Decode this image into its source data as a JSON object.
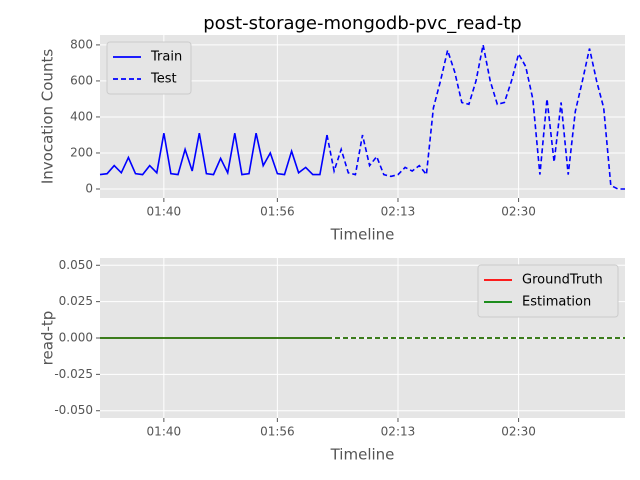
{
  "chart_data": [
    {
      "type": "line",
      "title": "post-storage-mongodb-pvc_read-tp",
      "xlabel": "Timeline",
      "ylabel": "Invocation Counts",
      "x": [
        "01:31",
        "01:32",
        "01:33",
        "01:34",
        "01:35",
        "01:36",
        "01:37",
        "01:38",
        "01:39",
        "01:40",
        "01:41",
        "01:42",
        "01:43",
        "01:44",
        "01:45",
        "01:46",
        "01:47",
        "01:48",
        "01:49",
        "01:50",
        "01:51",
        "01:52",
        "01:53",
        "01:54",
        "01:55",
        "01:56",
        "01:57",
        "01:58",
        "01:59",
        "02:00",
        "02:01",
        "02:02",
        "02:03",
        "02:04",
        "02:05",
        "02:06",
        "02:07",
        "02:08",
        "02:09",
        "02:10",
        "02:11",
        "02:12",
        "02:13",
        "02:14",
        "02:15",
        "02:16",
        "02:17",
        "02:18",
        "02:19",
        "02:20",
        "02:21",
        "02:22",
        "02:23",
        "02:24",
        "02:25",
        "02:26",
        "02:27",
        "02:28",
        "02:29",
        "02:30",
        "02:31",
        "02:32",
        "02:33",
        "02:34",
        "02:35",
        "02:36",
        "02:37",
        "02:38",
        "02:39",
        "02:40",
        "02:41",
        "02:42",
        "02:43",
        "02:44",
        "02:45"
      ],
      "series": [
        {
          "name": "Train",
          "color": "#0000ff",
          "linestyle": "solid",
          "values": [
            80,
            85,
            130,
            90,
            175,
            85,
            80,
            130,
            90,
            310,
            85,
            80,
            220,
            100,
            310,
            85,
            80,
            170,
            90,
            310,
            80,
            85,
            310,
            130,
            200,
            85,
            80,
            210,
            90,
            120,
            80,
            80,
            300,
            null,
            null,
            null,
            null,
            null,
            null,
            null,
            null,
            null,
            null,
            null,
            null,
            null,
            null,
            null,
            null,
            null,
            null,
            null,
            null,
            null,
            null,
            null,
            null,
            null,
            null,
            null,
            null,
            null,
            null,
            null,
            null,
            null,
            null,
            null,
            null,
            null,
            null,
            null,
            null,
            null,
            null
          ]
        },
        {
          "name": "Test",
          "color": "#0000ff",
          "linestyle": "dashed",
          "values": [
            null,
            null,
            null,
            null,
            null,
            null,
            null,
            null,
            null,
            null,
            null,
            null,
            null,
            null,
            null,
            null,
            null,
            null,
            null,
            null,
            null,
            null,
            null,
            null,
            null,
            null,
            null,
            null,
            null,
            null,
            null,
            null,
            300,
            100,
            220,
            90,
            80,
            300,
            130,
            180,
            80,
            70,
            80,
            120,
            100,
            130,
            80,
            450,
            600,
            770,
            650,
            480,
            470,
            600,
            800,
            600,
            470,
            480,
            600,
            750,
            680,
            500,
            80,
            500,
            150,
            480,
            80,
            430,
            600,
            780,
            600,
            450,
            20,
            0,
            0
          ]
        }
      ],
      "xlim": [
        "01:31",
        "02:45"
      ],
      "xticks": [
        "01:40",
        "01:56",
        "02:13",
        "02:30"
      ],
      "ylim": [
        -50,
        855
      ],
      "yticks": [
        0,
        200,
        400,
        600,
        800
      ],
      "grid": true,
      "legend": "upper left"
    },
    {
      "type": "line",
      "xlabel": "Timeline",
      "ylabel": "read-tp",
      "series": [
        {
          "name": "GroundTruth",
          "color": "#ff0000",
          "values": [
            0,
            0,
            0,
            0,
            0,
            0,
            0,
            0,
            0,
            0,
            0,
            0,
            0,
            0,
            0,
            0,
            0,
            0,
            0,
            0,
            0,
            0,
            0,
            0,
            0,
            0,
            0,
            0,
            0,
            0,
            0,
            0,
            0,
            0,
            0,
            0,
            0,
            0,
            0,
            0,
            0,
            0,
            0,
            0,
            0,
            0,
            0,
            0,
            0,
            0,
            0,
            0,
            0,
            0,
            0,
            0,
            0,
            0,
            0,
            0,
            0,
            0,
            0,
            0,
            0,
            0,
            0,
            0,
            0,
            0,
            0,
            0,
            0,
            0,
            0
          ]
        },
        {
          "name": "Estimation",
          "color": "#008000",
          "values": [
            0,
            0,
            0,
            0,
            0,
            0,
            0,
            0,
            0,
            0,
            0,
            0,
            0,
            0,
            0,
            0,
            0,
            0,
            0,
            0,
            0,
            0,
            0,
            0,
            0,
            0,
            0,
            0,
            0,
            0,
            0,
            0,
            0,
            0,
            0,
            0,
            0,
            0,
            0,
            0,
            0,
            0,
            0,
            0,
            0,
            0,
            0,
            0,
            0,
            0,
            0,
            0,
            0,
            0,
            0,
            0,
            0,
            0,
            0,
            0,
            0,
            0,
            0,
            0,
            0,
            0,
            0,
            0,
            0,
            0,
            0,
            0,
            0,
            0,
            0
          ]
        }
      ],
      "xlim": [
        "01:31",
        "02:45"
      ],
      "xticks": [
        "01:40",
        "01:56",
        "02:13",
        "02:30"
      ],
      "ylim": [
        -0.055,
        0.055
      ],
      "yticks": [
        {
          "value": -0.05,
          "label": "-0.050"
        },
        {
          "value": -0.025,
          "label": "-0.025"
        },
        {
          "value": 0,
          "label": "0.000"
        },
        {
          "value": 0.025,
          "label": "0.025"
        },
        {
          "value": 0.05,
          "label": "0.050"
        }
      ],
      "grid": true,
      "legend": "upper right"
    }
  ]
}
